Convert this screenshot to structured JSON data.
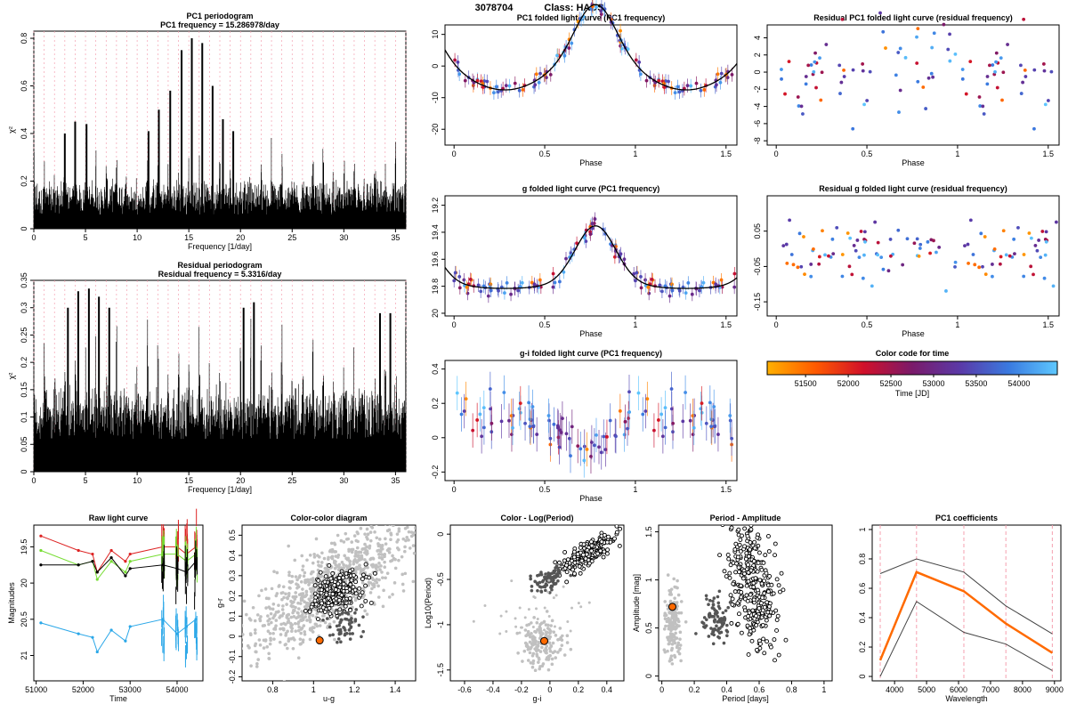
{
  "header": {
    "object_id": "3078704",
    "class_label": "Class: HADS"
  },
  "colors": {
    "black": "#000000",
    "grid_pink": "#f4a0b0",
    "gray_light": "#c0c0c0",
    "gray_dark": "#555555",
    "orange": "#ff6a00",
    "g_green": "#77dd33",
    "r_red": "#dd2222",
    "u_blue": "#2aa7e8"
  },
  "chart_data": [
    {
      "id": "pc1-periodogram",
      "type": "line",
      "title": "PC1 periodogram",
      "subtitle": "PC1 frequency = 15.286978/day",
      "xlabel": "Frequency [1/day]",
      "ylabel": "χ²",
      "xlim": [
        0,
        36
      ],
      "ylim": [
        0,
        0.83
      ],
      "xticks": [
        0,
        5,
        10,
        15,
        20,
        25,
        30,
        35
      ],
      "yticks": [
        0.0,
        0.2,
        0.4,
        0.6,
        0.8
      ],
      "peaks": [
        {
          "x": 15.29,
          "y": 0.8
        },
        {
          "x": 16.3,
          "y": 0.78
        },
        {
          "x": 14.3,
          "y": 0.75
        },
        {
          "x": 17.3,
          "y": 0.6
        },
        {
          "x": 13.2,
          "y": 0.58
        },
        {
          "x": 12.1,
          "y": 0.5
        },
        {
          "x": 18.3,
          "y": 0.46
        },
        {
          "x": 4.0,
          "y": 0.45
        },
        {
          "x": 5.1,
          "y": 0.44
        },
        {
          "x": 3.0,
          "y": 0.4
        },
        {
          "x": 11.1,
          "y": 0.41
        },
        {
          "x": 19.3,
          "y": 0.41
        }
      ],
      "baseline_max": 0.37,
      "grid": "vertical dashed pink"
    },
    {
      "id": "residual-periodogram",
      "type": "line",
      "title": "Residual periodogram",
      "subtitle": "Residual frequency = 5.3316/day",
      "xlabel": "Frequency [1/day]",
      "ylabel": "χ²",
      "xlim": [
        0,
        36
      ],
      "ylim": [
        0,
        0.35
      ],
      "xticks": [
        0,
        5,
        10,
        15,
        20,
        25,
        30,
        35
      ],
      "yticks": [
        0.0,
        0.05,
        0.1,
        0.15,
        0.2,
        0.25,
        0.3,
        0.35
      ],
      "peaks": [
        {
          "x": 5.33,
          "y": 0.335
        },
        {
          "x": 4.3,
          "y": 0.33
        },
        {
          "x": 6.3,
          "y": 0.32
        },
        {
          "x": 3.3,
          "y": 0.3
        },
        {
          "x": 7.3,
          "y": 0.3
        },
        {
          "x": 21.3,
          "y": 0.31
        },
        {
          "x": 20.3,
          "y": 0.3
        },
        {
          "x": 33.5,
          "y": 0.29
        },
        {
          "x": 34.5,
          "y": 0.29
        }
      ],
      "baseline_max": 0.26,
      "grid": "vertical dashed pink"
    },
    {
      "id": "pc1-folded",
      "type": "scatter",
      "title": "PC1 folded light curve (PC1 frequency)",
      "xlabel": "Phase",
      "ylabel": "",
      "xlim": [
        -0.05,
        1.56
      ],
      "ylim": [
        -25,
        13
      ],
      "xticks": [
        0.0,
        0.5,
        1.0,
        1.5
      ],
      "yticks": [
        -20,
        -10,
        0,
        10
      ],
      "curve": {
        "mean": 0,
        "amplitude": 27,
        "min_phase": 0.78,
        "shape": "pulsation"
      }
    },
    {
      "id": "residual-pc1-folded",
      "type": "scatter",
      "title": "Residual PC1 folded light curve (residual frequency)",
      "xlabel": "Phase",
      "ylabel": "",
      "xlim": [
        -0.05,
        1.56
      ],
      "ylim": [
        -8.5,
        5.5
      ],
      "xticks": [
        0.0,
        0.5,
        1.0,
        1.5
      ],
      "yticks": [
        -8,
        -6,
        -4,
        -2,
        0,
        2,
        4
      ]
    },
    {
      "id": "g-folded",
      "type": "scatter",
      "title": "g folded light curve (PC1 frequency)",
      "xlabel": "Phase",
      "ylabel": "",
      "xlim": [
        -0.05,
        1.56
      ],
      "ylim": [
        20.02,
        19.13
      ],
      "xticks": [
        0.0,
        0.5,
        1.0,
        1.5
      ],
      "yticks": [
        19.2,
        19.4,
        19.6,
        19.8,
        20.0
      ],
      "curve": {
        "mean": 19.6,
        "amplitude": 0.45,
        "min_phase": 0.78,
        "shape": "pulsation"
      }
    },
    {
      "id": "residual-g-folded",
      "type": "scatter",
      "title": "Residual g folded light curve (residual frequency)",
      "xlabel": "Phase",
      "ylabel": "",
      "xlim": [
        -0.05,
        1.56
      ],
      "ylim": [
        -0.19,
        0.15
      ],
      "xticks": [
        0.0,
        0.5,
        1.0,
        1.5
      ],
      "yticks": [
        -0.15,
        -0.05,
        0.05
      ]
    },
    {
      "id": "gi-folded",
      "type": "scatter",
      "title": "g-i folded light curve (PC1 frequency)",
      "xlabel": "Phase",
      "ylabel": "",
      "xlim": [
        -0.05,
        1.56
      ],
      "ylim": [
        -0.25,
        0.45
      ],
      "xticks": [
        0.0,
        0.5,
        1.0,
        1.5
      ],
      "yticks": [
        -0.2,
        0.0,
        0.2,
        0.4
      ]
    },
    {
      "id": "time-colorbar",
      "type": "heatmap",
      "title": "Color code for time",
      "xlabel": "Time [JD]",
      "xlim": [
        51050,
        54450
      ],
      "xticks": [
        51500,
        52000,
        52500,
        53000,
        53500,
        54000
      ],
      "stops": [
        "#ffb000",
        "#ff5a00",
        "#d0102a",
        "#7a1a6a",
        "#5a3aa8",
        "#3a7ae0",
        "#5ec8ff"
      ]
    },
    {
      "id": "raw-light-curve",
      "type": "line",
      "title": "Raw light curve",
      "xlabel": "Time",
      "ylabel": "Magnitudes",
      "xlim": [
        50950,
        54550
      ],
      "ylim": [
        21.35,
        19.2
      ],
      "xticks": [
        51000,
        52000,
        53000,
        54000
      ],
      "yticks": [
        19.5,
        20.0,
        20.5,
        21.0
      ],
      "series": [
        {
          "name": "",
          "color": "#dd2222",
          "values": [
            [
              51100,
              19.35
            ],
            [
              51900,
              19.55
            ],
            [
              52200,
              19.6
            ],
            [
              52300,
              19.85
            ],
            [
              52600,
              19.55
            ],
            [
              52900,
              19.7
            ],
            [
              53000,
              19.6
            ],
            [
              53700,
              19.5
            ],
            [
              54000,
              19.5
            ],
            [
              54200,
              19.6
            ],
            [
              54400,
              19.5
            ]
          ]
        },
        {
          "name": "",
          "color": "#77dd33",
          "values": [
            [
              51100,
              19.55
            ],
            [
              51900,
              19.75
            ],
            [
              52200,
              19.7
            ],
            [
              52300,
              19.95
            ],
            [
              52600,
              19.7
            ],
            [
              52900,
              19.85
            ],
            [
              53000,
              19.7
            ],
            [
              53700,
              19.6
            ],
            [
              54000,
              19.6
            ],
            [
              54200,
              19.7
            ],
            [
              54400,
              19.6
            ]
          ]
        },
        {
          "name": "",
          "color": "#000000",
          "values": [
            [
              51100,
              19.75
            ],
            [
              51900,
              19.75
            ],
            [
              52200,
              19.7
            ],
            [
              52300,
              19.85
            ],
            [
              52600,
              19.65
            ],
            [
              52900,
              19.9
            ],
            [
              53000,
              19.8
            ],
            [
              53700,
              19.75
            ],
            [
              54000,
              19.8
            ],
            [
              54200,
              19.85
            ],
            [
              54400,
              19.7
            ]
          ]
        },
        {
          "name": "",
          "color": "#2aa7e8",
          "values": [
            [
              51100,
              20.55
            ],
            [
              51900,
              20.7
            ],
            [
              52200,
              20.75
            ],
            [
              52300,
              20.95
            ],
            [
              52600,
              20.65
            ],
            [
              52900,
              20.8
            ],
            [
              53000,
              20.6
            ],
            [
              53700,
              20.5
            ],
            [
              54000,
              20.7
            ],
            [
              54200,
              20.6
            ],
            [
              54400,
              20.5
            ]
          ]
        }
      ]
    },
    {
      "id": "color-color",
      "type": "scatter",
      "title": "Color-color diagram",
      "xlabel": "u-g",
      "ylabel": "g-r",
      "xlim": [
        0.65,
        1.5
      ],
      "ylim": [
        -0.22,
        0.55
      ],
      "xticks": [
        0.8,
        1.0,
        1.2,
        1.4
      ],
      "yticks": [
        -0.2,
        -0.1,
        0.0,
        0.1,
        0.2,
        0.3,
        0.4,
        0.5
      ],
      "highlight": {
        "x": 1.03,
        "y": -0.02
      }
    },
    {
      "id": "color-logperiod",
      "type": "scatter",
      "title": "Color - Log(Period)",
      "xlabel": "g-i",
      "ylabel": "Log10(Period)",
      "xlim": [
        -0.7,
        0.52
      ],
      "ylim": [
        -1.62,
        0.1
      ],
      "xticks": [
        -0.6,
        -0.4,
        -0.2,
        0.0,
        0.2,
        0.4
      ],
      "yticks": [
        -1.5,
        -1.0,
        -0.5,
        0.0
      ],
      "highlight": {
        "x": -0.04,
        "y": -1.18
      }
    },
    {
      "id": "period-amplitude",
      "type": "scatter",
      "title": "Period - Amplitude",
      "xlabel": "Period [days]",
      "ylabel": "Amplitude [mag]",
      "xlim": [
        -0.02,
        1.05
      ],
      "ylim": [
        -0.05,
        1.57
      ],
      "xticks": [
        0.0,
        0.2,
        0.4,
        0.6,
        0.8,
        1.0
      ],
      "yticks": [
        0.0,
        0.5,
        1.0,
        1.5
      ],
      "highlight": {
        "x": 0.065,
        "y": 0.72
      }
    },
    {
      "id": "pc1-coefficients",
      "type": "line",
      "title": "PC1 coefficients",
      "xlabel": "Wavelength",
      "ylabel": "",
      "xlim": [
        3300,
        9200
      ],
      "ylim": [
        -0.03,
        1.03
      ],
      "xticks": [
        4000,
        5000,
        6000,
        7000,
        8000,
        9000
      ],
      "yticks": [
        0.0,
        0.2,
        0.4,
        0.6,
        0.8,
        1.0
      ],
      "band_lines": [
        3551,
        4686,
        6166,
        7480,
        8932
      ],
      "categories": [
        3551,
        4686,
        6166,
        7480,
        8932
      ],
      "series": [
        {
          "name": "",
          "color": "#ff6a00",
          "values": [
            0.11,
            0.71,
            0.58,
            0.36,
            0.16
          ]
        },
        {
          "name": "",
          "color": "#444444",
          "values": [
            0.7,
            0.8,
            0.71,
            0.48,
            0.29
          ]
        },
        {
          "name": "",
          "color": "#444444",
          "values": [
            0.0,
            0.51,
            0.3,
            0.22,
            0.04
          ]
        }
      ]
    }
  ]
}
